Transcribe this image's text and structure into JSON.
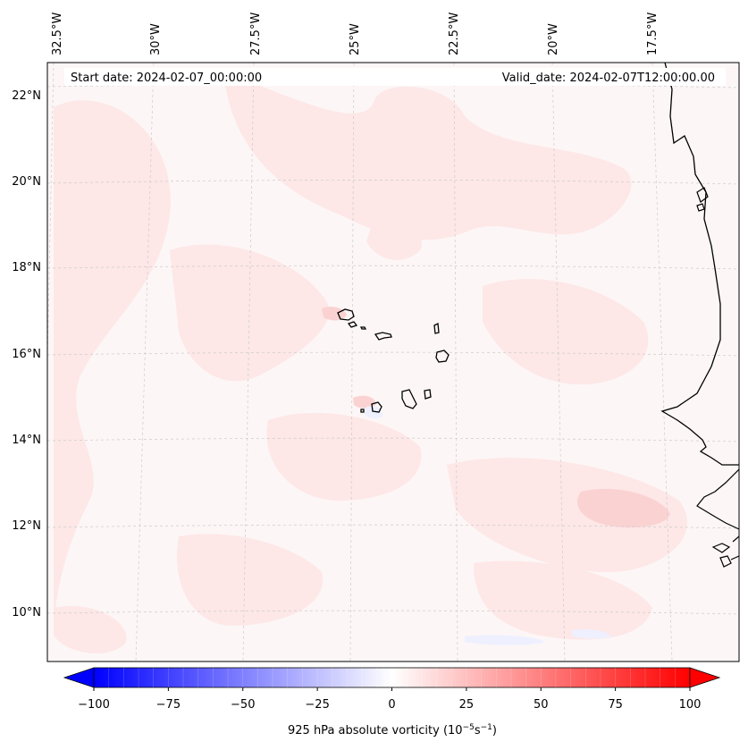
{
  "header": {
    "start_date": "Start date: 2024-02-07_00:00:00",
    "valid_date": "Valid_date: 2024-02-07T12:00:00.00"
  },
  "lon_labels": [
    "32.5°W",
    "30°W",
    "27.5°W",
    "25°W",
    "22.5°W",
    "20°W",
    "17.5°W"
  ],
  "lat_labels": [
    "22°N",
    "20°N",
    "18°N",
    "16°N",
    "14°N",
    "12°N",
    "10°N"
  ],
  "colorbar": {
    "ticks": [
      "−100",
      "−75",
      "−50",
      "−25",
      "0",
      "25",
      "50",
      "75",
      "100"
    ],
    "label": "925 hPa absolute vorticity (10",
    "label_exp1": "−5",
    "label_mid": "s",
    "label_exp2": "−1",
    "label_end": ")",
    "min": -100,
    "max": 100,
    "colors": {
      "negative": "#0000ff",
      "zero": "#ffffff",
      "positive": "#ff0000"
    }
  },
  "map": {
    "background": "#fdf6f6",
    "field_color": "#fde7e7",
    "strong_field_color": "#fbd2d2",
    "coast_color": "#000000",
    "grid_color": "#cccccc"
  }
}
